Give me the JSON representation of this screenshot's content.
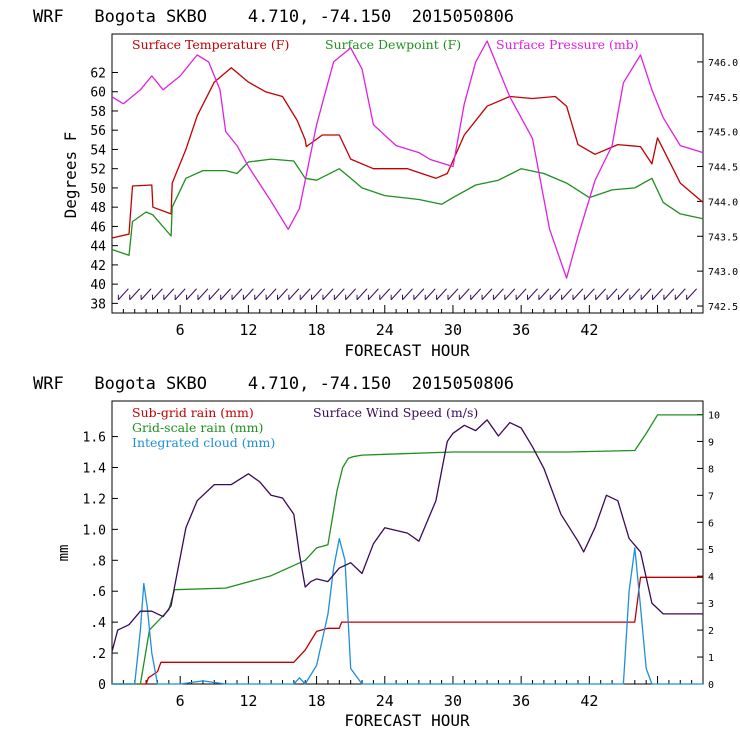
{
  "colors": {
    "temperature": "#c00000",
    "dewpoint": "#1f8f1f",
    "pressure": "#e020e0",
    "subgrid_rain": "#c00000",
    "gridscale_rain": "#1f8f1f",
    "cloud": "#1e8fd8",
    "wind": "#3a0a5a",
    "axis": "#000000"
  },
  "chart_data": [
    {
      "type": "line",
      "title": "WRF   Bogota SKBO    4.710, -74.150  2015050806",
      "xlabel": "FORECAST HOUR",
      "ylabel": "Degrees F",
      "xlim": [
        0,
        52
      ],
      "ylim": [
        37,
        66
      ],
      "y2lim": [
        742.4,
        746.4
      ],
      "xticks": [
        6,
        12,
        18,
        24,
        30,
        36,
        42
      ],
      "yticks": [
        38,
        40,
        42,
        44,
        46,
        48,
        50,
        52,
        54,
        56,
        58,
        60,
        62
      ],
      "y2ticks": [
        742.5,
        743.0,
        743.5,
        744.0,
        744.5,
        745.0,
        745.5,
        746.0
      ],
      "y2ticklabels": [
        "742.5",
        "743.0",
        "743.5",
        "744.0",
        "744.5",
        "745.0",
        "745.5",
        "746.0"
      ],
      "legend": [
        "Surface Temperature (F)",
        "Surface Dewpoint (F)",
        "Surface Pressure (mb)"
      ],
      "series": [
        {
          "name": "Surface Temperature (F)",
          "axis": "left",
          "x": [
            0,
            1.5,
            1.8,
            3.5,
            3.6,
            5.2,
            5.3,
            6.5,
            7.5,
            9,
            10.5,
            12,
            13.5,
            15,
            16.3,
            17,
            17.1,
            18.5,
            20,
            21,
            23,
            26,
            28.5,
            29.5,
            31,
            33,
            35,
            37,
            39,
            40,
            41,
            42.5,
            44.5,
            46.5,
            47.5,
            48,
            50,
            52
          ],
          "values": [
            44.8,
            45.2,
            50.2,
            50.3,
            48,
            47.3,
            50.5,
            54,
            57.5,
            61,
            62.5,
            61,
            60,
            59.5,
            57,
            55,
            54.3,
            55.5,
            55.5,
            53,
            52,
            52,
            51,
            51.5,
            55.5,
            58.5,
            59.5,
            59.3,
            59.5,
            58.5,
            54.5,
            53.5,
            54.5,
            54.3,
            52.5,
            55.2,
            50.5,
            48.5
          ]
        },
        {
          "name": "Surface Dewpoint (F)",
          "axis": "left",
          "x": [
            0,
            1.5,
            1.8,
            3,
            3.6,
            5.2,
            5.3,
            6.5,
            8,
            10,
            11,
            12,
            14,
            16,
            17,
            18,
            20,
            21,
            22,
            24,
            27,
            29,
            30,
            32,
            34,
            36,
            38,
            40,
            42,
            44,
            46,
            47.5,
            48.5,
            50,
            52
          ],
          "values": [
            43.6,
            43,
            46.5,
            47.5,
            47.2,
            45,
            48,
            51,
            51.8,
            51.8,
            51.5,
            52.7,
            53,
            52.8,
            51,
            50.8,
            52,
            51,
            50,
            49.2,
            48.8,
            48.3,
            49,
            50.3,
            50.8,
            52,
            51.5,
            50.5,
            49,
            49.8,
            50,
            51,
            48.5,
            47.3,
            46.8
          ]
        },
        {
          "name": "Surface Pressure (mb)",
          "axis": "right",
          "x": [
            0,
            1,
            2.5,
            3.5,
            4.5,
            6,
            7.5,
            8.5,
            9.5,
            10,
            11,
            12,
            14,
            15.5,
            16.5,
            18,
            19.5,
            21,
            22,
            23,
            25,
            27,
            28,
            30,
            31,
            32,
            33,
            34,
            35,
            36,
            37,
            38.5,
            40,
            41,
            42.5,
            44,
            45,
            46.5,
            47.5,
            48.5,
            50,
            52
          ],
          "values": [
            745.5,
            745.4,
            745.6,
            745.8,
            745.6,
            745.8,
            746.1,
            746.0,
            745.6,
            745.0,
            744.8,
            744.5,
            744.0,
            743.6,
            743.9,
            745.1,
            746.0,
            746.2,
            745.9,
            745.1,
            744.8,
            744.7,
            744.6,
            744.5,
            745.4,
            746.0,
            746.3,
            745.9,
            745.5,
            745.2,
            744.9,
            743.6,
            742.9,
            743.5,
            744.3,
            744.8,
            745.7,
            746.1,
            745.6,
            745.2,
            744.8,
            744.7
          ]
        }
      ]
    },
    {
      "type": "line",
      "title": "WRF   Bogota SKBO    4.710, -74.150  2015050806",
      "xlabel": "FORECAST HOUR",
      "ylabel": "mm",
      "xlim": [
        0,
        52
      ],
      "ylim": [
        0,
        1.83
      ],
      "y2lim": [
        0,
        10.5
      ],
      "xticks": [
        6,
        12,
        18,
        24,
        30,
        36,
        42
      ],
      "yticks": [
        0,
        0.2,
        0.4,
        0.6,
        0.8,
        1.0,
        1.2,
        1.4,
        1.6
      ],
      "yticklabels": [
        "0",
        ".2",
        ".4",
        ".6",
        ".8",
        "1.0",
        "1.2",
        "1.4",
        "1.6"
      ],
      "y2ticks": [
        0,
        1,
        2,
        3,
        4,
        5,
        6,
        7,
        8,
        9,
        10
      ],
      "y2ticklabels": [
        "0",
        "1",
        "2",
        "3",
        "4",
        "5",
        "6",
        "7",
        "8",
        "9",
        "10"
      ],
      "legend": [
        "Sub-grid rain (mm)",
        "Grid-scale rain (mm)",
        "Integrated cloud (mm)",
        "Surface Wind Speed (m/s)"
      ],
      "series": [
        {
          "name": "Sub-grid rain (mm)",
          "axis": "left",
          "x": [
            0,
            3,
            3.2,
            4,
            4.3,
            16,
            17,
            18,
            19,
            20,
            20.2,
            26,
            46,
            46.5,
            52
          ],
          "values": [
            0,
            0,
            0.04,
            0.08,
            0.14,
            0.14,
            0.22,
            0.34,
            0.36,
            0.36,
            0.4,
            0.4,
            0.4,
            0.69,
            0.69
          ]
        },
        {
          "name": "Grid-scale rain (mm)",
          "axis": "left",
          "x": [
            0,
            2.5,
            3.3,
            5,
            5.5,
            10,
            14,
            17,
            18,
            19,
            19.8,
            20.3,
            20.8,
            21.2,
            22,
            30,
            40,
            46,
            47,
            48,
            52
          ],
          "values": [
            0,
            0,
            0.35,
            0.48,
            0.61,
            0.62,
            0.7,
            0.8,
            0.88,
            0.9,
            1.25,
            1.4,
            1.46,
            1.47,
            1.48,
            1.5,
            1.5,
            1.51,
            1.62,
            1.74,
            1.74
          ]
        },
        {
          "name": "Integrated cloud (mm)",
          "axis": "left",
          "x": [
            0,
            2,
            2.5,
            2.8,
            3.1,
            3.5,
            4,
            6,
            8,
            10,
            16,
            16.5,
            17,
            18,
            19,
            19.5,
            20,
            20.5,
            21,
            22,
            30,
            45,
            45.5,
            46,
            46.5,
            47,
            47.5,
            52
          ],
          "values": [
            0,
            0,
            0.35,
            0.65,
            0.5,
            0.2,
            0,
            0,
            0.02,
            0,
            0,
            0.04,
            0,
            0.12,
            0.45,
            0.75,
            0.94,
            0.8,
            0.1,
            0,
            0,
            0,
            0.6,
            0.88,
            0.5,
            0.1,
            0,
            0
          ]
        },
        {
          "name": "Surface Wind Speed (m/s)",
          "axis": "right",
          "x": [
            0,
            0.5,
            1.5,
            2.5,
            3.5,
            4.5,
            5.2,
            5.5,
            6.5,
            7.5,
            9,
            10.5,
            12,
            13,
            14,
            15,
            16,
            16.5,
            17,
            17.5,
            18,
            19,
            20,
            21,
            22,
            23,
            24,
            26,
            27,
            28.5,
            29.5,
            30,
            31,
            32,
            33,
            34,
            35,
            36,
            37,
            38,
            39.5,
            41,
            41.5,
            42.5,
            43.5,
            44.5,
            45.5,
            46.5,
            47.5,
            48.5,
            50,
            52
          ],
          "values": [
            1.2,
            2.0,
            2.2,
            2.7,
            2.7,
            2.5,
            2.9,
            3.6,
            5.8,
            6.8,
            7.4,
            7.4,
            7.8,
            7.5,
            7.0,
            6.9,
            6.3,
            4.8,
            3.6,
            3.8,
            3.9,
            3.8,
            4.3,
            4.5,
            4.1,
            5.2,
            5.8,
            5.6,
            5.3,
            6.8,
            9.0,
            9.3,
            9.6,
            9.4,
            9.8,
            9.2,
            9.7,
            9.5,
            8.8,
            8.0,
            6.3,
            5.3,
            4.9,
            5.8,
            7.0,
            6.8,
            5.4,
            4.9,
            3.0,
            2.6,
            2.6,
            2.6
          ]
        }
      ]
    }
  ]
}
